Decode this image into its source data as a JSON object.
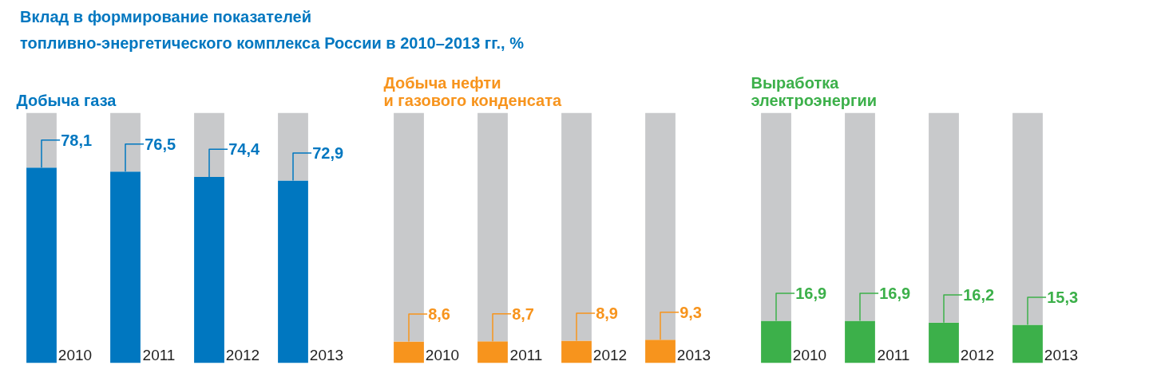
{
  "chart_data": [
    {
      "type": "bar",
      "title": "Вклад в формирование показателей\nтопливно-энергетического комплекса России в 2010–2013 гг., %",
      "subtitle": "Добыча газа",
      "categories": [
        "2010",
        "2011",
        "2012",
        "2013"
      ],
      "stacked": true,
      "ylim": [
        0,
        100
      ],
      "tick_labels": "x",
      "grid": false,
      "series": [
        {
          "color": "#0077c0",
          "values": [
            78.1,
            76.5,
            74.4,
            72.9
          ],
          "value_labels": [
            "78,1",
            "76,5",
            "74,4",
            "72,9"
          ]
        },
        {
          "color": "#c8c9cb",
          "values": [
            21.9,
            23.5,
            25.6,
            27.1
          ]
        }
      ]
    },
    {
      "type": "bar",
      "subtitle": "Добыча нефти\nи газового конденсата",
      "categories": [
        "2010",
        "2011",
        "2012",
        "2013"
      ],
      "stacked": true,
      "ylim": [
        0,
        100
      ],
      "tick_labels": "x",
      "grid": false,
      "series": [
        {
          "color": "#f7941d",
          "values": [
            8.6,
            8.7,
            8.9,
            9.3
          ],
          "value_labels": [
            "8,6",
            "8,7",
            "8,9",
            "9,3"
          ]
        },
        {
          "color": "#c8c9cb",
          "values": [
            91.4,
            91.3,
            91.1,
            90.7
          ]
        }
      ]
    },
    {
      "type": "bar",
      "subtitle": "Выработка\nэлектроэнергии",
      "categories": [
        "2010",
        "2011",
        "2012",
        "2013"
      ],
      "stacked": true,
      "ylim": [
        0,
        100
      ],
      "tick_labels": "x",
      "grid": false,
      "series": [
        {
          "color": "#3cb04a",
          "values": [
            16.9,
            16.9,
            16.2,
            15.3
          ],
          "value_labels": [
            "16,9",
            "16,9",
            "16,2",
            "15,3"
          ]
        },
        {
          "color": "#c8c9cb",
          "values": [
            83.1,
            83.1,
            83.8,
            84.7
          ]
        }
      ]
    }
  ]
}
